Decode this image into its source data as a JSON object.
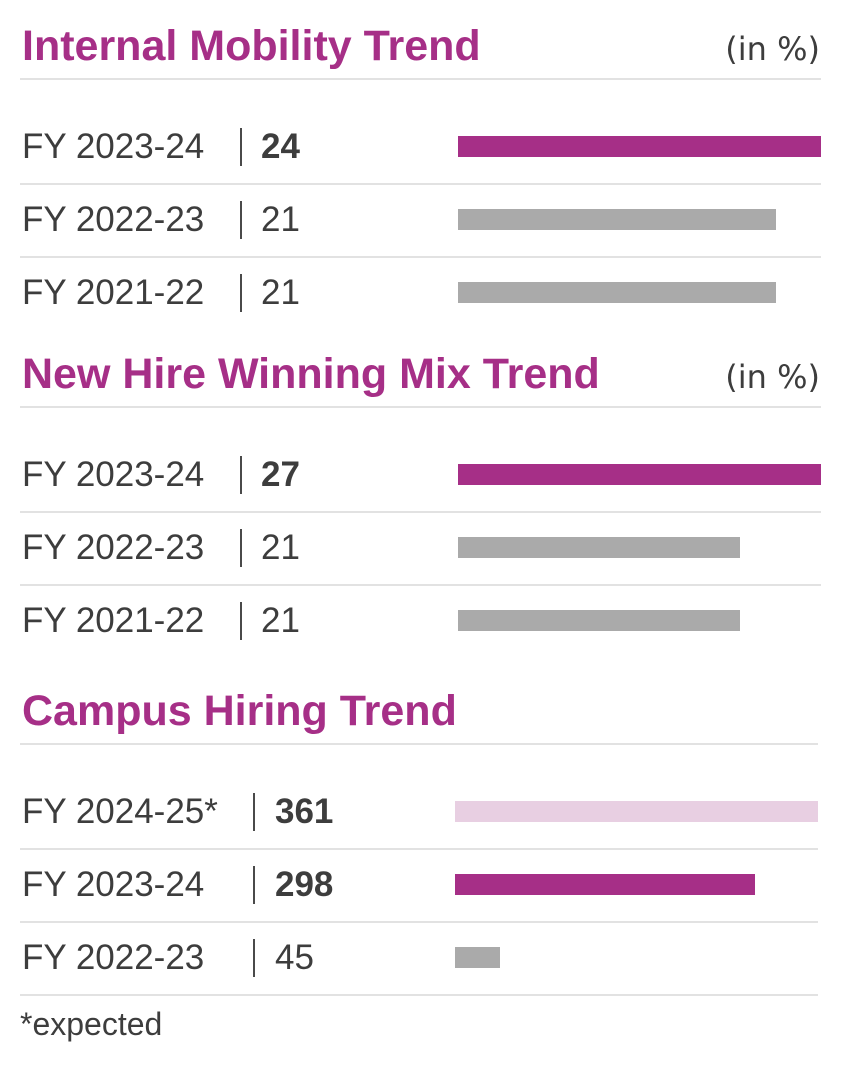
{
  "colors": {
    "title": "#a62f87",
    "current": "#a62f87",
    "previous": "#aaaaaa",
    "expected": "#e8cfe2"
  },
  "chart_data": [
    {
      "type": "bar",
      "title": "Internal Mobility Trend",
      "unit": "(in %)",
      "categories": [
        "FY 2023-24",
        "FY 2022-23",
        "FY 2021-22"
      ],
      "values": [
        24,
        21,
        21
      ],
      "styles": [
        "current",
        "previous",
        "previous"
      ],
      "max": 24
    },
    {
      "type": "bar",
      "title": "New Hire Winning Mix Trend",
      "unit": "(in %)",
      "categories": [
        "FY 2023-24",
        "FY 2022-23",
        "FY 2021-22"
      ],
      "values": [
        27,
        21,
        21
      ],
      "styles": [
        "current",
        "previous",
        "previous"
      ],
      "max": 27
    },
    {
      "type": "bar",
      "title": "Campus Hiring Trend",
      "unit": "",
      "categories": [
        "FY 2024-25*",
        "FY 2023-24",
        "FY 2022-23"
      ],
      "values": [
        361,
        298,
        45
      ],
      "styles": [
        "expected",
        "current",
        "previous"
      ],
      "max": 361
    }
  ],
  "footnote": "*expected"
}
